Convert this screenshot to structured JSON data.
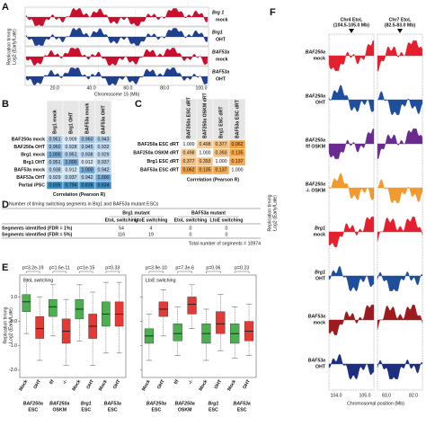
{
  "panel_a": {
    "letter": "A",
    "y_label": [
      "Replication timing",
      "Log2 (Early/Late)"
    ],
    "tracks": [
      {
        "name": "Brg 1",
        "sub": "mock",
        "color": "#c8102e"
      },
      {
        "name": "Brg1",
        "sub": "OHT",
        "color": "#1f3f8f"
      },
      {
        "name": "BAF53a",
        "sub": "mock",
        "color": "#c8102e"
      },
      {
        "name": "BAF53a",
        "sub": "OHT",
        "color": "#1f3f8f"
      }
    ],
    "x_ticks": [
      "20.0",
      "40.0",
      "60.0",
      "80.0",
      "100.0"
    ],
    "x_label": "Chromosome 15 (Mb)"
  },
  "panel_b": {
    "letter": "B",
    "columns": [
      "Brg1 mock",
      "Brg1 OHT",
      "BAF53a mock",
      "BAF53a OHT"
    ],
    "rows": [
      "BAF250a mock",
      "BAF250a OHT",
      "Brg1 mock",
      "Brg1 OHT",
      "BAF53a mock",
      "BAF53a OHT",
      "Partial iPSC"
    ],
    "values": [
      [
        0.951,
        0.909,
        0.96,
        0.943
      ],
      [
        0.96,
        0.928,
        0.945,
        0.932
      ],
      [
        1.0,
        0.951,
        0.938,
        0.929
      ],
      [
        0.951,
        1.0,
        0.912,
        0.937
      ],
      [
        0.938,
        0.912,
        1.0,
        0.942
      ],
      [
        0.929,
        0.937,
        0.942,
        1.0
      ],
      [
        0.835,
        0.794,
        0.838,
        0.834
      ]
    ],
    "value_labels": [
      [
        "0.951",
        "0.909",
        "0.960",
        "0.943"
      ],
      [
        "0.960",
        "0.928",
        "0.945",
        "0.932"
      ],
      [
        "1.000",
        "0.951",
        "0.938",
        "0.929"
      ],
      [
        "0.951",
        "1.000",
        "0.912",
        "0.937"
      ],
      [
        "0.938",
        "0.912",
        "1.000",
        "0.942"
      ],
      [
        "0.929",
        "0.937",
        "0.942",
        "1.000"
      ],
      [
        "0.835",
        "0.794",
        "0.838",
        "0.834"
      ]
    ],
    "caption": "Correlation (Pearson R)"
  },
  "panel_c": {
    "letter": "C",
    "columns": [
      "BAF250a ESC dRT",
      "BAF250a OSKM dRT",
      "Brg1 ESC dRT",
      "BAF53a ESC dRT"
    ],
    "rows": [
      "BAF250a ESC dRT",
      "BAF250a OSKM dRT",
      "Brg1 ESC dRT",
      "BAF53a ESC dRT"
    ],
    "values": [
      [
        1.0,
        0.498,
        0.377,
        0.062
      ],
      [
        0.498,
        1.0,
        0.393,
        0.135
      ],
      [
        0.377,
        0.393,
        1.0,
        0.137
      ],
      [
        0.062,
        0.135,
        0.137,
        1.0
      ]
    ],
    "value_labels": [
      [
        "1.000",
        "0.498",
        "0.377",
        "0.062"
      ],
      [
        "0.498",
        "1.000",
        "0.393",
        "0.135"
      ],
      [
        "0.377",
        "0.393",
        "1.000",
        "0.137"
      ],
      [
        "0.062",
        "0.135",
        "0.137",
        "1.000"
      ]
    ],
    "caption": "Correlation (Pearson R)"
  },
  "panel_d": {
    "letter": "D",
    "title": "Number of timing switching segments in Brg1 and BAF53a mutant ESCs",
    "groups": [
      "Brg1 mutant",
      "BAF53a mutant"
    ],
    "columns": [
      "EtoL switching",
      "LtoE switching",
      "EtoL switching",
      "LtoE switching"
    ],
    "rows": [
      {
        "label": "Segments identified (FDR = 1%)",
        "values": [
          54,
          4,
          0,
          0
        ]
      },
      {
        "label": "Segments identified (FDR = 5%)",
        "values": [
          116,
          19,
          0,
          0
        ]
      }
    ],
    "total": "Total number of segments = 10974"
  },
  "panel_e": {
    "letter": "E",
    "y_label": [
      "Replication timing",
      "Log2 (Early/Late)"
    ],
    "ylim": [
      -2.3,
      1.9
    ],
    "yticks": [
      {
        "value": 1,
        "label": "1.0"
      },
      {
        "value": 0,
        "label": "0.0"
      },
      {
        "value": -1,
        "label": "-1.0"
      },
      {
        "value": -2,
        "label": "-2.0"
      }
    ],
    "x_labels": [
      "Mock",
      "OHT",
      "f/f",
      "-/-",
      "Mock",
      "OHT",
      "Mock",
      "OHT"
    ],
    "groups": [
      {
        "name": "BAF250a",
        "sub": "ESC"
      },
      {
        "name": "BAF250a",
        "sub": "OSKM"
      },
      {
        "name": "Brg1",
        "sub": "ESC"
      },
      {
        "name": "BAF53a",
        "sub": "ESC"
      }
    ],
    "plots": [
      {
        "title": "EtoL switching",
        "p_values": [
          "p=3.2e-19",
          "p=1.6e-11",
          "p=1e-15",
          "p=0.33"
        ],
        "boxes": [
          {
            "color": "#4caf50",
            "whisker_low": -0.5,
            "q1": 0.4,
            "median": 0.8,
            "q3": 1.1,
            "whisker_high": 1.7
          },
          {
            "color": "#e53935",
            "whisker_low": -1.6,
            "q1": -0.7,
            "median": -0.3,
            "q3": 0.2,
            "whisker_high": 1.0
          },
          {
            "color": "#4caf50",
            "whisker_low": -0.6,
            "q1": 0.2,
            "median": 0.6,
            "q3": 0.9,
            "whisker_high": 1.5
          },
          {
            "color": "#e53935",
            "whisker_low": -1.8,
            "q1": -0.9,
            "median": -0.4,
            "q3": 0.1,
            "whisker_high": 0.9
          },
          {
            "color": "#4caf50",
            "whisker_low": -0.8,
            "q1": 0.1,
            "median": 0.5,
            "q3": 0.9,
            "whisker_high": 1.5
          },
          {
            "color": "#e53935",
            "whisker_low": -1.8,
            "q1": -0.7,
            "median": -0.2,
            "q3": 0.3,
            "whisker_high": 1.2
          },
          {
            "color": "#4caf50",
            "whisker_low": -1.3,
            "q1": -0.2,
            "median": 0.3,
            "q3": 0.8,
            "whisker_high": 1.6
          },
          {
            "color": "#e53935",
            "whisker_low": -1.3,
            "q1": -0.2,
            "median": 0.3,
            "q3": 0.8,
            "whisker_high": 1.6
          }
        ]
      },
      {
        "title": "LtoE switching",
        "p_values": [
          "p=3.9e-10",
          "p=7.3e-6",
          "p=0.06",
          "p=0.23"
        ],
        "boxes": [
          {
            "color": "#4caf50",
            "whisker_low": -1.6,
            "q1": -0.9,
            "median": -0.6,
            "q3": -0.3,
            "whisker_high": 0.3
          },
          {
            "color": "#e53935",
            "whisker_low": -0.6,
            "q1": 0.2,
            "median": 0.5,
            "q3": 0.8,
            "whisker_high": 1.3
          },
          {
            "color": "#4caf50",
            "whisker_low": -1.4,
            "q1": -0.8,
            "median": -0.5,
            "q3": -0.1,
            "whisker_high": 0.6
          },
          {
            "color": "#e53935",
            "whisker_low": -0.3,
            "q1": 0.3,
            "median": 0.7,
            "q3": 1.0,
            "whisker_high": 1.5
          },
          {
            "color": "#4caf50",
            "whisker_low": -1.6,
            "q1": -0.9,
            "median": -0.5,
            "q3": -0.1,
            "whisker_high": 0.5
          },
          {
            "color": "#e53935",
            "whisker_low": -1.2,
            "q1": -0.5,
            "median": -0.1,
            "q3": 0.4,
            "whisker_high": 1.1
          },
          {
            "color": "#4caf50",
            "whisker_low": -1.5,
            "q1": -0.9,
            "median": -0.5,
            "q3": -0.1,
            "whisker_high": 0.6
          },
          {
            "color": "#e53935",
            "whisker_low": -1.4,
            "q1": -0.8,
            "median": -0.4,
            "q3": 0.0,
            "whisker_high": 0.7
          }
        ]
      }
    ]
  },
  "panel_f": {
    "letter": "F",
    "y_label": [
      "Replication timing",
      "Log2 (Early/Late)"
    ],
    "headers": [
      {
        "name": "Chr4 EtoL",
        "range": "(104.5-105.0 Mb)"
      },
      {
        "name": "Chr7 EtoL",
        "range": "(82.5-83.0 Mb)"
      }
    ],
    "tracks": [
      {
        "name": "BAF250a",
        "sub": "mock",
        "color": "#e5202e"
      },
      {
        "name": "BAF250a",
        "sub": "OHT",
        "color": "#1f4e9c"
      },
      {
        "name": "BAF250a",
        "sub": "f/f OSKM",
        "color": "#6a2b90"
      },
      {
        "name": "BAF250a",
        "sub": "-/- OSKM",
        "color": "#f39a2e"
      },
      {
        "name": "Brg1",
        "sub": "mock",
        "color": "#e5202e"
      },
      {
        "name": "Brg1",
        "sub": "OHT",
        "color": "#1f4e9c"
      },
      {
        "name": "BAF53a",
        "sub": "mock",
        "color": "#9b1b1f"
      },
      {
        "name": "BAF53a",
        "sub": "OHT",
        "color": "#1c2f80"
      }
    ],
    "x_ticks": [
      "104.0",
      "105.0",
      "83.0",
      "82.0"
    ],
    "x_label": "Chromosomal position (Mb)"
  }
}
